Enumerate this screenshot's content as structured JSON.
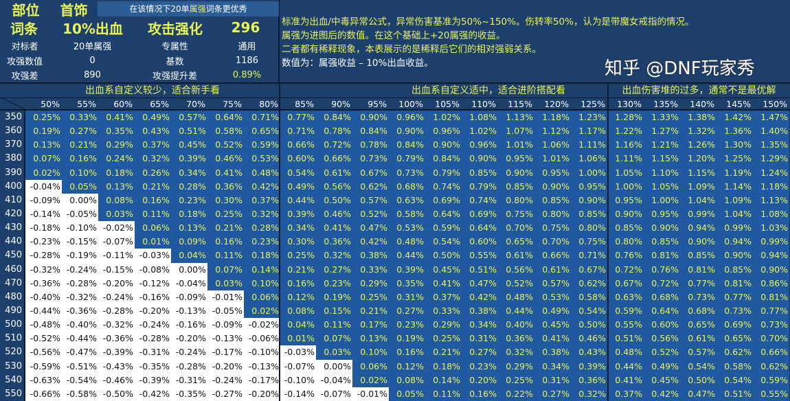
{
  "info": {
    "part_label": "部位",
    "part_value": "首饰",
    "tip_prefix": "在该情况下20单",
    "tip_highlight": "属强",
    "tip_suffix": "词条更优秀",
    "entry_label": "词条",
    "entry_value": "10%出血",
    "entry_compare": "攻击强化",
    "entry_number": "296",
    "rival_label": "对标者",
    "rival_value": "20单属强",
    "exclusive_label": "专属性",
    "exclusive_value": "通用",
    "atk_value_label": "攻强数值",
    "atk_value": "0",
    "base_label": "基数",
    "base_value": "1186",
    "atk_diff_label": "攻强差",
    "atk_diff": "890",
    "atk_gain_label": "攻强提升差",
    "atk_gain": "0.89%"
  },
  "notes": [
    "标准为出血/中毒异常公式，异常伤害基准为50%~150%。伤转率50%，认为是带魔女戒指的情况。",
    "属强为进图后的数值。在这个基础上+20属强的收益。",
    "二者都有稀释现象，本表展示的是稀释后它们的相对强弱关系。",
    "数值为：属强收益 – 10%出血收益。"
  ],
  "bands": [
    "出血系自定义较少，适合新手看",
    "出血系自定义适中，适合进阶搭配看",
    "出血伤害堆的过多，通常不是最优解"
  ],
  "columns": [
    "50%",
    "55%",
    "60%",
    "65%",
    "70%",
    "75%",
    "80%",
    "85%",
    "90%",
    "95%",
    "100%",
    "105%",
    "110%",
    "115%",
    "120%",
    "125%",
    "130%",
    "135%",
    "140%",
    "145%",
    "150%"
  ],
  "rows": [
    {
      "label": "350",
      "values": [
        "0.25%",
        "0.33%",
        "0.41%",
        "0.49%",
        "0.57%",
        "0.64%",
        "0.71%",
        "0.77%",
        "0.84%",
        "0.90%",
        "0.96%",
        "1.02%",
        "1.08%",
        "1.13%",
        "1.18%",
        "1.23%",
        "1.28%",
        "1.33%",
        "1.38%",
        "1.42%",
        "1.47%"
      ]
    },
    {
      "label": "360",
      "values": [
        "0.19%",
        "0.27%",
        "0.35%",
        "0.43%",
        "0.51%",
        "0.58%",
        "0.65%",
        "0.71%",
        "0.78%",
        "0.84%",
        "0.90%",
        "0.96%",
        "1.02%",
        "1.07%",
        "1.12%",
        "1.17%",
        "1.22%",
        "1.27%",
        "1.32%",
        "1.36%",
        "1.40%"
      ]
    },
    {
      "label": "370",
      "values": [
        "0.13%",
        "0.21%",
        "0.29%",
        "0.37%",
        "0.45%",
        "0.52%",
        "0.59%",
        "0.66%",
        "0.72%",
        "0.78%",
        "0.84%",
        "0.90%",
        "0.96%",
        "1.01%",
        "1.06%",
        "1.11%",
        "1.16%",
        "1.21%",
        "1.26%",
        "1.30%",
        "1.35%"
      ]
    },
    {
      "label": "380",
      "values": [
        "0.07%",
        "0.16%",
        "0.24%",
        "0.32%",
        "0.39%",
        "0.46%",
        "0.53%",
        "0.60%",
        "0.66%",
        "0.73%",
        "0.79%",
        "0.84%",
        "0.90%",
        "0.95%",
        "1.01%",
        "1.06%",
        "1.11%",
        "1.15%",
        "1.20%",
        "1.25%",
        "1.29%"
      ]
    },
    {
      "label": "390",
      "values": [
        "0.02%",
        "0.10%",
        "0.18%",
        "0.26%",
        "0.34%",
        "0.41%",
        "0.48%",
        "0.54%",
        "0.61%",
        "0.67%",
        "0.73%",
        "0.79%",
        "0.85%",
        "0.90%",
        "0.95%",
        "1.00%",
        "1.05%",
        "1.10%",
        "1.15%",
        "1.19%",
        "1.24%"
      ]
    },
    {
      "label": "400",
      "values": [
        "-0.04%",
        "0.05%",
        "0.13%",
        "0.21%",
        "0.28%",
        "0.36%",
        "0.42%",
        "0.49%",
        "0.56%",
        "0.62%",
        "0.68%",
        "0.74%",
        "0.79%",
        "0.85%",
        "0.90%",
        "0.95%",
        "1.00%",
        "1.05%",
        "1.09%",
        "1.14%",
        "1.18%"
      ]
    },
    {
      "label": "410",
      "values": [
        "-0.09%",
        "0.00%",
        "0.08%",
        "0.16%",
        "0.23%",
        "0.30%",
        "0.37%",
        "0.44%",
        "0.50%",
        "0.57%",
        "0.63%",
        "0.69%",
        "0.74%",
        "0.80%",
        "0.85%",
        "0.90%",
        "0.95%",
        "1.00%",
        "1.04%",
        "1.09%",
        "1.13%"
      ]
    },
    {
      "label": "420",
      "values": [
        "-0.14%",
        "-0.05%",
        "0.03%",
        "0.11%",
        "0.18%",
        "0.25%",
        "0.32%",
        "0.39%",
        "0.46%",
        "0.52%",
        "0.58%",
        "0.64%",
        "0.69%",
        "0.75%",
        "0.80%",
        "0.85%",
        "0.90%",
        "0.95%",
        "0.99%",
        "1.04%",
        "1.08%"
      ]
    },
    {
      "label": "430",
      "values": [
        "-0.18%",
        "-0.10%",
        "-0.02%",
        "0.06%",
        "0.13%",
        "0.21%",
        "0.28%",
        "0.34%",
        "0.41%",
        "0.47%",
        "0.53%",
        "0.59%",
        "0.64%",
        "0.70%",
        "0.75%",
        "0.80%",
        "0.85%",
        "0.90%",
        "0.94%",
        "0.99%",
        "1.03%"
      ]
    },
    {
      "label": "440",
      "values": [
        "-0.23%",
        "-0.15%",
        "-0.07%",
        "0.01%",
        "0.09%",
        "0.16%",
        "0.23%",
        "0.30%",
        "0.36%",
        "0.42%",
        "0.48%",
        "0.54%",
        "0.60%",
        "0.65%",
        "0.70%",
        "0.75%",
        "0.80%",
        "0.85%",
        "0.90%",
        "0.94%",
        "0.99%"
      ]
    },
    {
      "label": "450",
      "values": [
        "-0.28%",
        "-0.19%",
        "-0.11%",
        "-0.03%",
        "0.04%",
        "0.11%",
        "0.18%",
        "0.25%",
        "0.32%",
        "0.38%",
        "0.44%",
        "0.50%",
        "0.55%",
        "0.61%",
        "0.66%",
        "0.71%",
        "0.76%",
        "0.81%",
        "0.85%",
        "0.90%",
        "0.94%"
      ]
    },
    {
      "label": "460",
      "values": [
        "-0.32%",
        "-0.24%",
        "-0.15%",
        "-0.08%",
        "0.00%",
        "0.07%",
        "0.14%",
        "0.21%",
        "0.27%",
        "0.33%",
        "0.39%",
        "0.45%",
        "0.51%",
        "0.56%",
        "0.61%",
        "0.67%",
        "0.72%",
        "0.76%",
        "0.81%",
        "0.85%",
        "0.90%"
      ]
    },
    {
      "label": "470",
      "values": [
        "-0.36%",
        "-0.28%",
        "-0.20%",
        "-0.12%",
        "-0.04%",
        "0.03%",
        "0.10%",
        "0.16%",
        "0.23%",
        "0.29%",
        "0.35%",
        "0.41%",
        "0.47%",
        "0.52%",
        "0.57%",
        "0.62%",
        "0.67%",
        "0.72%",
        "0.77%",
        "0.81%",
        "0.86%"
      ]
    },
    {
      "label": "480",
      "values": [
        "-0.40%",
        "-0.32%",
        "-0.24%",
        "-0.16%",
        "-0.09%",
        "-0.01%",
        "0.06%",
        "0.12%",
        "0.19%",
        "0.25%",
        "0.31%",
        "0.37%",
        "0.42%",
        "0.48%",
        "0.53%",
        "0.58%",
        "0.63%",
        "0.68%",
        "0.73%",
        "0.77%",
        "0.81%"
      ]
    },
    {
      "label": "490",
      "values": [
        "-0.44%",
        "-0.36%",
        "-0.28%",
        "-0.20%",
        "-0.13%",
        "-0.05%",
        "0.02%",
        "0.08%",
        "0.15%",
        "0.21%",
        "0.27%",
        "0.33%",
        "0.38%",
        "0.44%",
        "0.49%",
        "0.54%",
        "0.59%",
        "0.64%",
        "0.68%",
        "0.73%",
        "0.77%"
      ]
    },
    {
      "label": "500",
      "values": [
        "-0.48%",
        "-0.40%",
        "-0.32%",
        "-0.24%",
        "-0.16%",
        "-0.09%",
        "-0.02%",
        "0.04%",
        "0.11%",
        "0.17%",
        "0.23%",
        "0.29%",
        "0.34%",
        "0.40%",
        "0.45%",
        "0.50%",
        "0.55%",
        "0.60%",
        "0.65%",
        "0.69%",
        "0.73%"
      ]
    },
    {
      "label": "510",
      "values": [
        "-0.52%",
        "-0.44%",
        "-0.36%",
        "-0.28%",
        "-0.20%",
        "-0.13%",
        "-0.06%",
        "0.01%",
        "0.07%",
        "0.13%",
        "0.19%",
        "0.25%",
        "0.31%",
        "0.36%",
        "0.41%",
        "0.46%",
        "0.51%",
        "0.56%",
        "0.61%",
        "0.65%",
        "0.70%"
      ]
    },
    {
      "label": "520",
      "values": [
        "-0.56%",
        "-0.47%",
        "-0.39%",
        "-0.31%",
        "-0.24%",
        "-0.17%",
        "-0.10%",
        "-0.03%",
        "0.03%",
        "0.10%",
        "0.16%",
        "0.21%",
        "0.27%",
        "0.32%",
        "0.38%",
        "0.43%",
        "0.48%",
        "0.52%",
        "0.57%",
        "0.62%",
        "0.66%"
      ]
    },
    {
      "label": "530",
      "values": [
        "-0.59%",
        "-0.51%",
        "-0.43%",
        "-0.35%",
        "-0.28%",
        "-0.20%",
        "-0.13%",
        "-0.07%",
        "0.00%",
        "0.06%",
        "0.12%",
        "0.18%",
        "0.23%",
        "0.29%",
        "0.34%",
        "0.39%",
        "0.44%",
        "0.49%",
        "0.54%",
        "0.58%",
        "0.62%"
      ]
    },
    {
      "label": "540",
      "values": [
        "-0.63%",
        "-0.54%",
        "-0.46%",
        "-0.39%",
        "-0.31%",
        "-0.24%",
        "-0.17%",
        "-0.10%",
        "-0.04%",
        "0.02%",
        "0.08%",
        "0.14%",
        "0.20%",
        "0.25%",
        "0.31%",
        "0.36%",
        "0.41%",
        "0.45%",
        "0.50%",
        "0.54%",
        "0.59%"
      ]
    },
    {
      "label": "550",
      "values": [
        "-0.66%",
        "-0.58%",
        "-0.50%",
        "-0.42%",
        "-0.35%",
        "-0.27%",
        "-0.20%",
        "-0.14%",
        "-0.07%",
        "-0.01%",
        "0.05%",
        "0.11%",
        "0.16%",
        "0.22%",
        "0.27%",
        "0.32%",
        "0.37%",
        "0.42%",
        "0.47%",
        "0.51%",
        "0.55%"
      ]
    }
  ],
  "negative_cells_white": [
    530,
    8
  ],
  "watermark": "知乎 @DNF玩家秀",
  "colors": {
    "header_bg": "#1d3f6c",
    "cell_bg": "#2059a0",
    "value_text": "#e9f35a",
    "negative_cell_bg": "#ffffff"
  }
}
